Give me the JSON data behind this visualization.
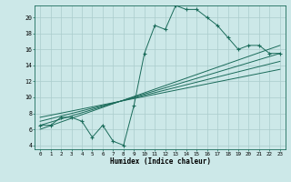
{
  "xlabel": "Humidex (Indice chaleur)",
  "ylabel": "",
  "bg_color": "#cce8e8",
  "line_color": "#1a6b5a",
  "grid_color": "#aacccc",
  "xlim": [
    -0.5,
    23.5
  ],
  "ylim": [
    3.5,
    21.5
  ],
  "xticks": [
    0,
    1,
    2,
    3,
    4,
    5,
    6,
    7,
    8,
    9,
    10,
    11,
    12,
    13,
    14,
    15,
    16,
    17,
    18,
    19,
    20,
    21,
    22,
    23
  ],
  "yticks": [
    4,
    6,
    8,
    10,
    12,
    14,
    16,
    18,
    20
  ],
  "main_line": [
    [
      0,
      6.5
    ],
    [
      1,
      6.5
    ],
    [
      2,
      7.5
    ],
    [
      3,
      7.5
    ],
    [
      4,
      7.0
    ],
    [
      5,
      5.0
    ],
    [
      6,
      6.5
    ],
    [
      7,
      4.5
    ],
    [
      8,
      4.0
    ],
    [
      9,
      9.0
    ],
    [
      10,
      15.5
    ],
    [
      11,
      19.0
    ],
    [
      12,
      18.5
    ],
    [
      13,
      21.5
    ],
    [
      14,
      21.0
    ],
    [
      15,
      21.0
    ],
    [
      16,
      20.0
    ],
    [
      17,
      19.0
    ],
    [
      18,
      17.5
    ],
    [
      19,
      16.0
    ],
    [
      20,
      16.5
    ],
    [
      21,
      16.5
    ],
    [
      22,
      15.5
    ],
    [
      23,
      15.5
    ]
  ],
  "regression_lines": [
    [
      [
        0,
        6.0
      ],
      [
        23,
        16.5
      ]
    ],
    [
      [
        0,
        6.5
      ],
      [
        23,
        15.5
      ]
    ],
    [
      [
        0,
        7.0
      ],
      [
        23,
        14.5
      ]
    ],
    [
      [
        0,
        7.5
      ],
      [
        23,
        13.5
      ]
    ]
  ]
}
